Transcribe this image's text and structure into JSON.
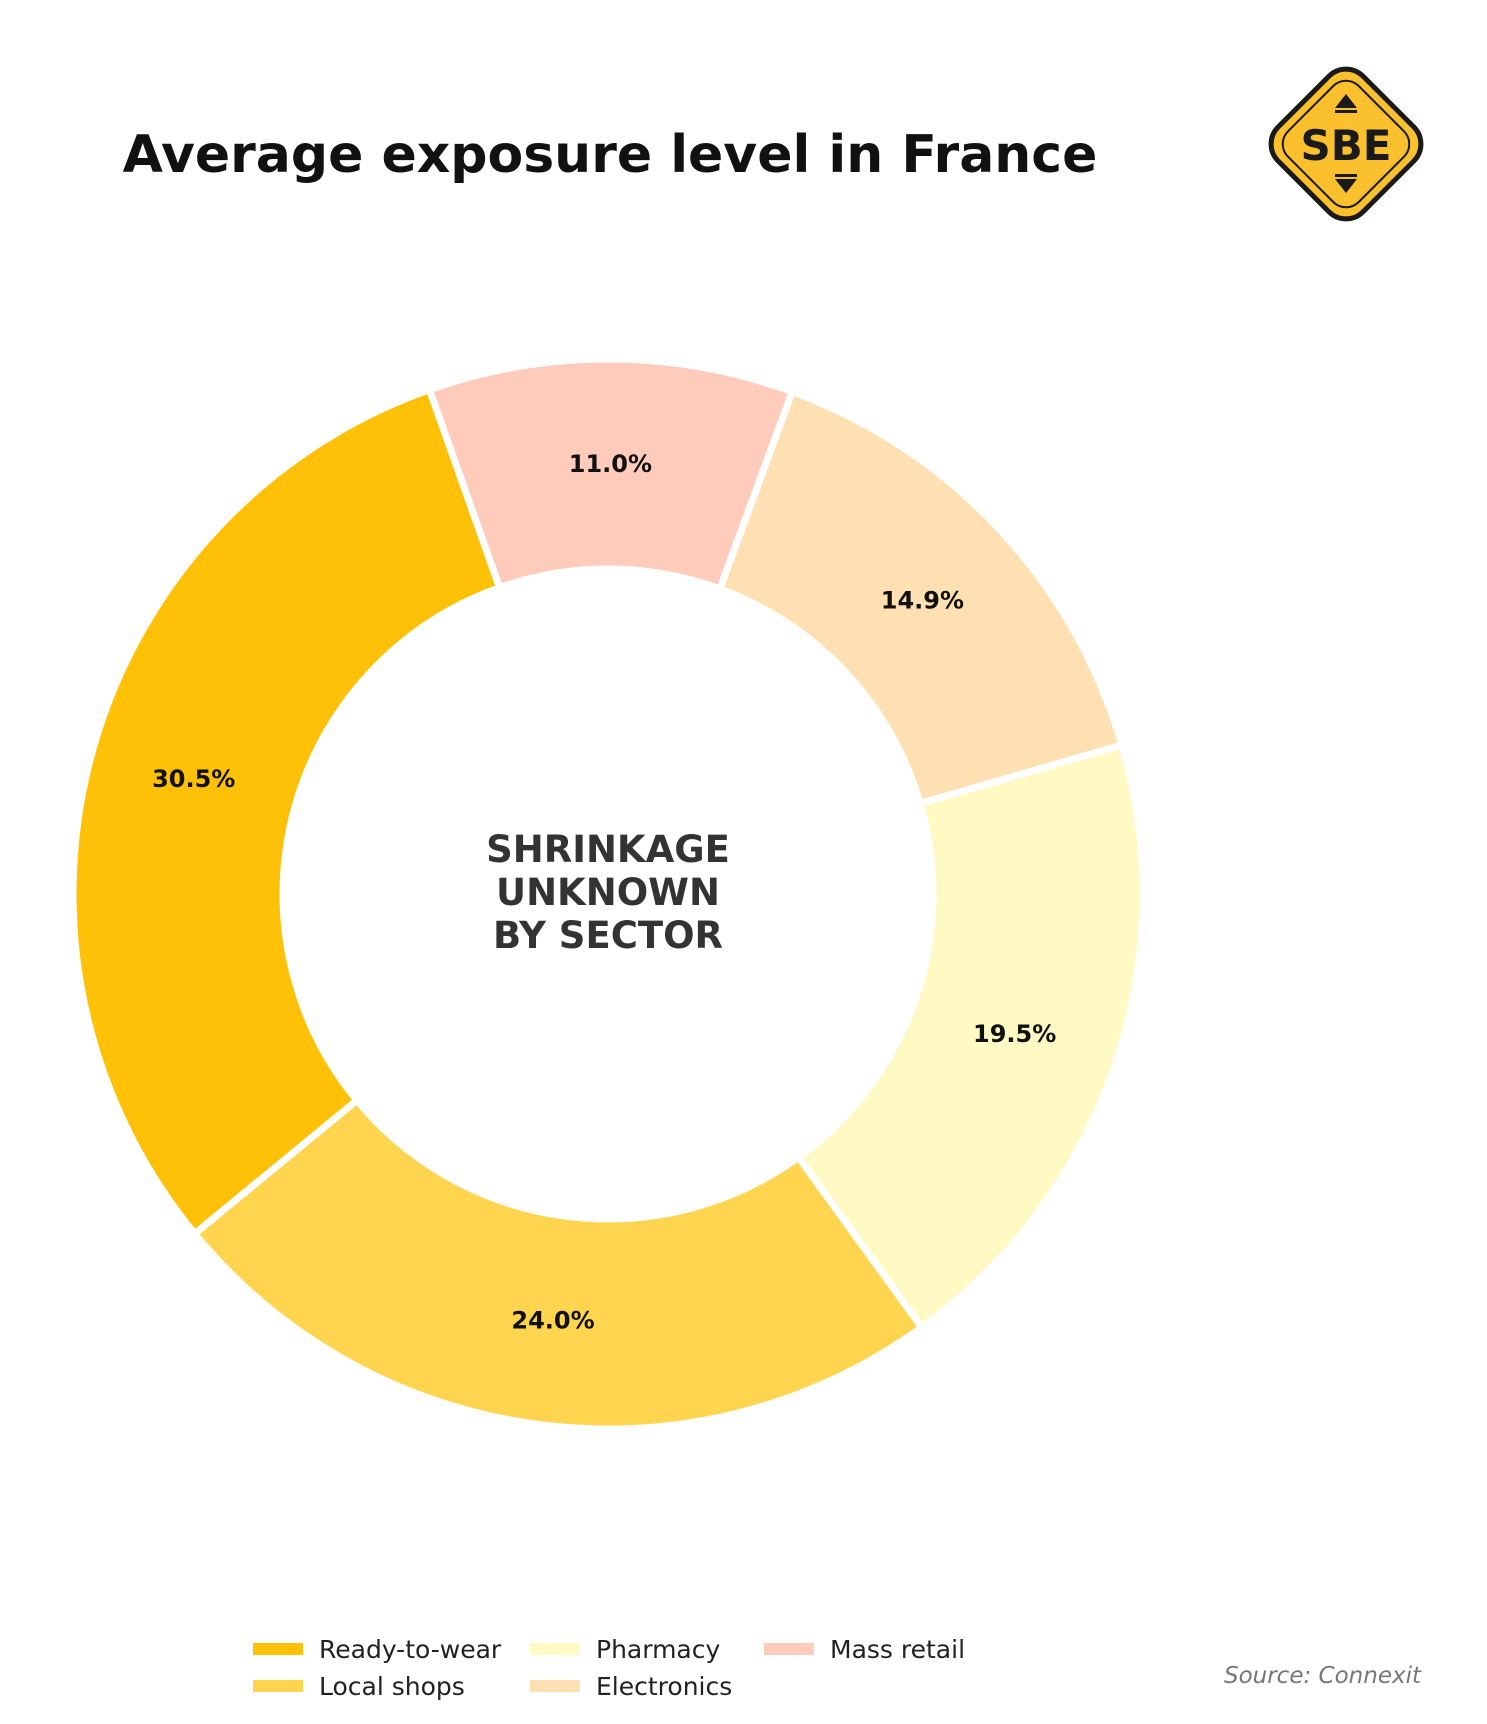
{
  "chart_data": {
    "type": "pie",
    "title": "Average exposure level in France",
    "center_label": [
      "SHRINKAGE",
      "UNKNOWN",
      "BY SECTOR"
    ],
    "start_angle_deg": -19.5,
    "categories": [
      "Mass retail",
      "Electronics",
      "Pharmacy",
      "Local shops",
      "Ready-to-wear"
    ],
    "values": [
      11.0,
      14.9,
      19.5,
      24.0,
      30.5
    ],
    "value_labels": [
      "11.0%",
      "14.9%",
      "19.5%",
      "24.0%",
      "30.5%"
    ],
    "colors": [
      "#FFCCBC",
      "#FFE0B2",
      "#FFF9C4",
      "#FFD54F",
      "#FFC107"
    ],
    "legend": [
      {
        "label": "Ready-to-wear",
        "color": "#FFC107"
      },
      {
        "label": "Local shops",
        "color": "#FFD54F"
      },
      {
        "label": "Pharmacy",
        "color": "#FFF9C4"
      },
      {
        "label": "Electronics",
        "color": "#FFE0B2"
      },
      {
        "label": "Mass retail",
        "color": "#FFCCBC"
      }
    ],
    "legend_placement": "bottom",
    "source": "Source: Connexit"
  },
  "logo": {
    "text": "SBE",
    "fill": "#FBC02D",
    "ink": "#1a1a1a"
  }
}
